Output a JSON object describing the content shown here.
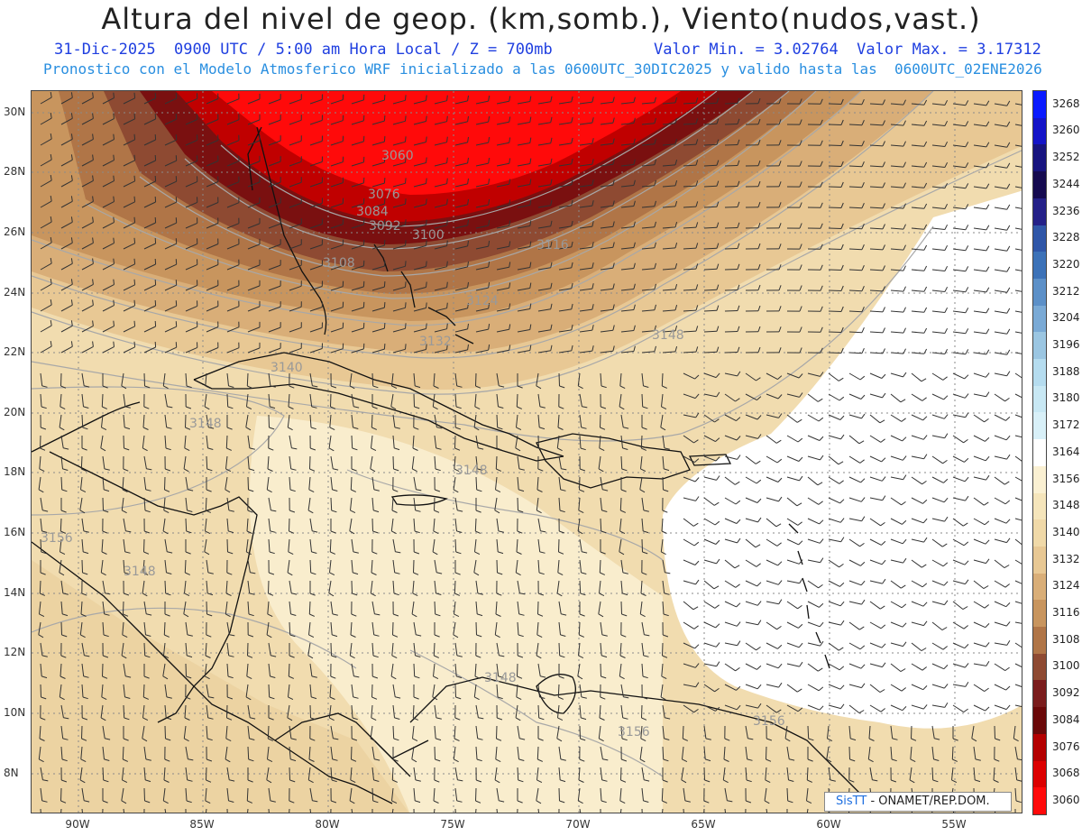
{
  "header": {
    "title": "Altura del nivel de geop. (km,somb.), Viento(nudos,vast.)",
    "line1_left": "31-Dic-2025  0900 UTC / 5:00 am Hora Local / Z = 700mb",
    "line1_right": "Valor Min. = 3.02764  Valor Max. = 3.17312",
    "line2": "Pronostico con el Modelo Atmosferico WRF inicializado a las 0600UTC_30DIC2025 y valido hasta las  0600UTC_02ENE2026"
  },
  "map": {
    "lat_labels": [
      "30N",
      "28N",
      "26N",
      "24N",
      "22N",
      "20N",
      "18N",
      "16N",
      "14N",
      "12N",
      "10N",
      "8N"
    ],
    "lon_labels": [
      "90W",
      "85W",
      "80W",
      "75W",
      "70W",
      "65W",
      "60W",
      "55W"
    ],
    "contour_labels": [
      "3060",
      "3076",
      "3084",
      "3092",
      "3100",
      "3108",
      "3116",
      "3124",
      "3132",
      "3140",
      "3148",
      "3148",
      "3148",
      "3148",
      "3148",
      "3156",
      "3156",
      "3156",
      "3148"
    ]
  },
  "colorbar": {
    "levels": [
      "3268",
      "3260",
      "3252",
      "3244",
      "3236",
      "3228",
      "3220",
      "3212",
      "3204",
      "3196",
      "3188",
      "3180",
      "3172",
      "3164",
      "3156",
      "3148",
      "3140",
      "3132",
      "3124",
      "3116",
      "3108",
      "3100",
      "3092",
      "3084",
      "3076",
      "3068",
      "3060"
    ],
    "colors": [
      "#0a1aff",
      "#1414c8",
      "#17147f",
      "#150a50",
      "#242088",
      "#2f56a8",
      "#3c72b8",
      "#5c90c8",
      "#7aaad6",
      "#9bc6e2",
      "#b5dcef",
      "#c8e8f4",
      "#d8f0f8",
      "#ffffff",
      "#faf0d2",
      "#f5e5bb",
      "#f0d9a8",
      "#e8c894",
      "#d9ae78",
      "#c8955e",
      "#b07547",
      "#8e4a32",
      "#7a1c1c",
      "#6a0808",
      "#b40000",
      "#dc0000",
      "#ff0a0a"
    ]
  },
  "credit": {
    "brand": "SisTT",
    "text": "- ONAMET/REP.DOM."
  }
}
